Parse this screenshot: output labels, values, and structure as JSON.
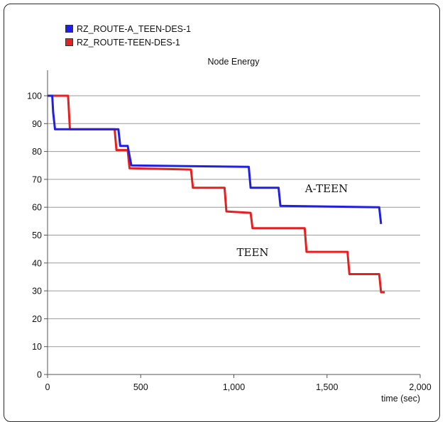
{
  "chart_data": {
    "type": "line",
    "title": "Node Energy",
    "xlabel": "time (sec)",
    "ylabel": "",
    "xlim": [
      0,
      2000
    ],
    "ylim": [
      0,
      100
    ],
    "x_ticks": [
      "0",
      "500",
      "1,000",
      "1,500",
      "2,000"
    ],
    "y_ticks": [
      "0",
      "10",
      "20",
      "30",
      "40",
      "50",
      "60",
      "70",
      "80",
      "90",
      "100"
    ],
    "x_tick_values": [
      0,
      500,
      1000,
      1500,
      2000
    ],
    "y_tick_values": [
      0,
      10,
      20,
      30,
      40,
      50,
      60,
      70,
      80,
      90,
      100
    ],
    "grid": "horizontal",
    "legend_position": "top-left",
    "annotations": [
      "A-TEEN",
      "TEEN"
    ],
    "series": [
      {
        "name": "RZ_ROUTE-A_TEEN-DES-1",
        "color": "#1f1fe6",
        "points": [
          [
            0,
            100
          ],
          [
            25,
            100
          ],
          [
            30,
            94
          ],
          [
            40,
            88
          ],
          [
            380,
            88
          ],
          [
            390,
            82
          ],
          [
            430,
            82
          ],
          [
            450,
            75
          ],
          [
            1080,
            74.5
          ],
          [
            1090,
            67
          ],
          [
            1240,
            67
          ],
          [
            1250,
            60.5
          ],
          [
            1780,
            60
          ],
          [
            1790,
            54
          ]
        ]
      },
      {
        "name": "RZ_ROUTE-TEEN-DES-1",
        "color": "#e61f1f",
        "points": [
          [
            0,
            100
          ],
          [
            110,
            100
          ],
          [
            120,
            88
          ],
          [
            360,
            88
          ],
          [
            370,
            80.5
          ],
          [
            430,
            80.5
          ],
          [
            440,
            74
          ],
          [
            770,
            73.5
          ],
          [
            780,
            67
          ],
          [
            950,
            67
          ],
          [
            960,
            58.5
          ],
          [
            1090,
            58
          ],
          [
            1100,
            52.5
          ],
          [
            1380,
            52.5
          ],
          [
            1390,
            44
          ],
          [
            1610,
            44
          ],
          [
            1620,
            36
          ],
          [
            1780,
            36
          ],
          [
            1790,
            29.5
          ],
          [
            1810,
            29.5
          ]
        ]
      }
    ]
  }
}
